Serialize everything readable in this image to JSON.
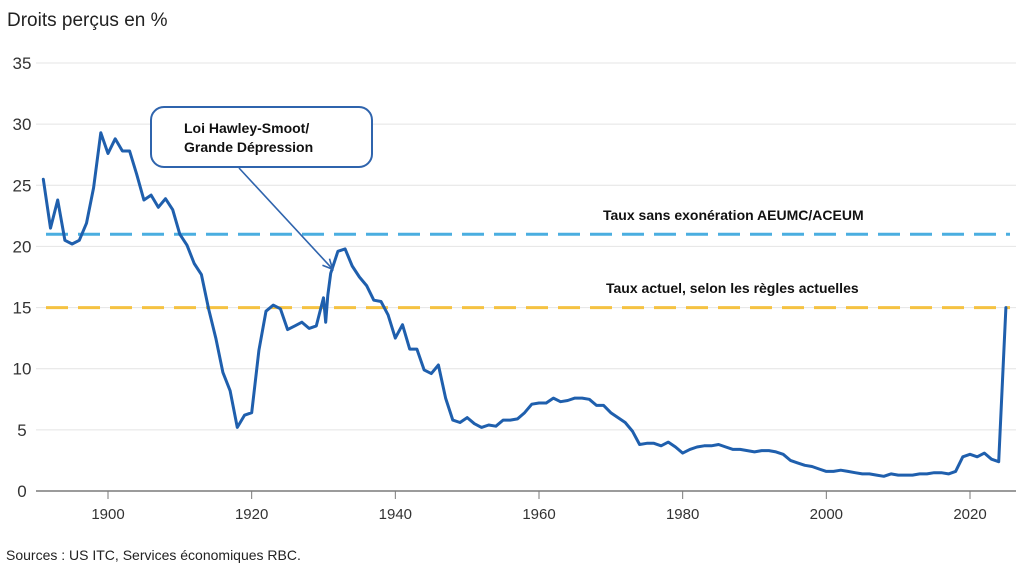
{
  "chart_data": {
    "type": "line",
    "title": "",
    "ylabel": "Droits perçus en %",
    "xlabel": "",
    "ylim": [
      0,
      35
    ],
    "xlim": [
      1889,
      2026
    ],
    "yticks": [
      0,
      5,
      10,
      15,
      20,
      25,
      30,
      35
    ],
    "xticks": [
      1900,
      1920,
      1940,
      1960,
      1980,
      2000,
      2020
    ],
    "grid": "horizontal",
    "series": [
      {
        "name": "Droits perçus",
        "color": "#1f5fad",
        "x": [
          1891,
          1892,
          1893,
          1894,
          1895,
          1896,
          1897,
          1898,
          1899,
          1900,
          1901,
          1902,
          1903,
          1904,
          1905,
          1906,
          1907,
          1908,
          1909,
          1910,
          1911,
          1912,
          1913,
          1914,
          1915,
          1916,
          1917,
          1918,
          1919,
          1920,
          1921,
          1922,
          1923,
          1924,
          1925,
          1926,
          1927,
          1928,
          1929,
          1930,
          1930.3,
          1930.6,
          1931,
          1932,
          1933,
          1934,
          1935,
          1936,
          1937,
          1938,
          1939,
          1940,
          1941,
          1942,
          1943,
          1944,
          1945,
          1946,
          1947,
          1948,
          1949,
          1950,
          1951,
          1952,
          1953,
          1954,
          1955,
          1956,
          1957,
          1958,
          1959,
          1960,
          1961,
          1962,
          1963,
          1964,
          1965,
          1966,
          1967,
          1968,
          1969,
          1970,
          1971,
          1972,
          1973,
          1974,
          1975,
          1976,
          1977,
          1978,
          1979,
          1980,
          1981,
          1982,
          1983,
          1984,
          1985,
          1986,
          1987,
          1988,
          1989,
          1990,
          1991,
          1992,
          1993,
          1994,
          1995,
          1996,
          1997,
          1998,
          1999,
          2000,
          2001,
          2002,
          2003,
          2004,
          2005,
          2006,
          2007,
          2008,
          2009,
          2010,
          2011,
          2012,
          2013,
          2014,
          2015,
          2016,
          2017,
          2018,
          2019,
          2020,
          2021,
          2022,
          2023,
          2024,
          2025
        ],
        "values": [
          25.5,
          21.5,
          23.8,
          20.5,
          20.2,
          20.5,
          21.9,
          24.8,
          29.3,
          27.6,
          28.8,
          27.8,
          27.8,
          25.9,
          23.8,
          24.2,
          23.2,
          23.9,
          23.0,
          21.0,
          20.1,
          18.6,
          17.7,
          14.9,
          12.5,
          9.7,
          8.2,
          5.2,
          6.2,
          6.4,
          11.5,
          14.7,
          15.2,
          14.9,
          13.2,
          13.5,
          13.8,
          13.3,
          13.5,
          15.8,
          13.8,
          16.0,
          17.8,
          19.6,
          19.8,
          18.4,
          17.5,
          16.8,
          15.6,
          15.5,
          14.4,
          12.5,
          13.6,
          11.6,
          11.6,
          9.9,
          9.6,
          10.3,
          7.6,
          5.8,
          5.6,
          6.0,
          5.5,
          5.2,
          5.4,
          5.3,
          5.8,
          5.8,
          5.9,
          6.4,
          7.1,
          7.2,
          7.2,
          7.6,
          7.3,
          7.4,
          7.6,
          7.6,
          7.5,
          7.0,
          7.0,
          6.4,
          6.0,
          5.6,
          4.9,
          3.8,
          3.9,
          3.9,
          3.7,
          4.0,
          3.6,
          3.1,
          3.4,
          3.6,
          3.7,
          3.7,
          3.8,
          3.6,
          3.4,
          3.4,
          3.3,
          3.2,
          3.3,
          3.3,
          3.2,
          3.0,
          2.5,
          2.3,
          2.1,
          2.0,
          1.8,
          1.6,
          1.6,
          1.7,
          1.6,
          1.5,
          1.4,
          1.4,
          1.3,
          1.2,
          1.4,
          1.3,
          1.3,
          1.3,
          1.4,
          1.4,
          1.5,
          1.5,
          1.4,
          1.6,
          2.8,
          3.0,
          2.8,
          3.1,
          2.6,
          2.4,
          15.0
        ]
      }
    ],
    "reference_lines": [
      {
        "name": "Taux sans exonération AEUMC/ACEUM",
        "value": 21.0,
        "color": "#4aaee0",
        "style": "dashed"
      },
      {
        "name": "Taux actuel, selon les règles actuelles",
        "value": 15.0,
        "color": "#f5c242",
        "style": "dashed"
      }
    ],
    "annotations": [
      {
        "text_line1": "Loi Hawley-Smoot/",
        "text_line2": "Grande Dépression",
        "points_to_year": 1931,
        "points_to_value": 18.3
      }
    ],
    "source": "Sources : US ITC, Services économiques RBC."
  }
}
